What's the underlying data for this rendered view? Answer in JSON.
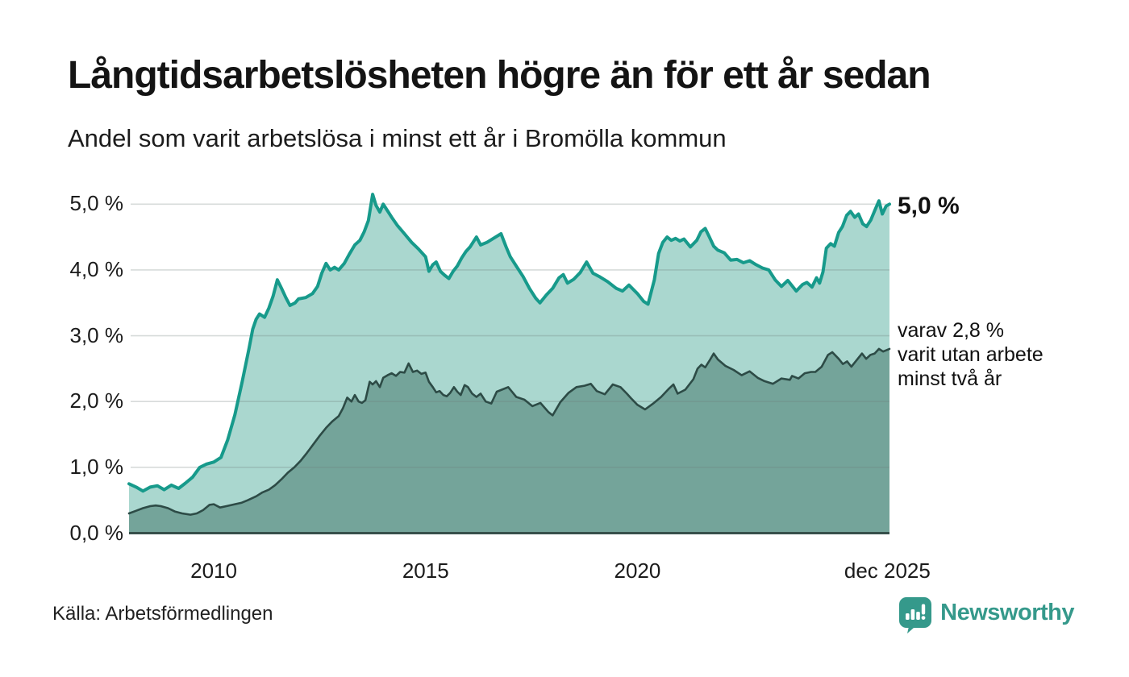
{
  "header": {
    "title": "Långtidsarbetslösheten högre än för ett år sedan",
    "subtitle": "Andel som varit arbetslösa i minst ett år i Bromölla kommun"
  },
  "chart_data": {
    "type": "area",
    "title": "Långtidsarbetslösheten högre än för ett år sedan",
    "subtitle": "Andel som varit arbetslösa i minst ett år i Bromölla kommun",
    "unit": "%",
    "x_axis": {
      "domain": [
        2008.0,
        2025.95
      ],
      "ticks": [
        {
          "label": "2010",
          "x": 2010
        },
        {
          "label": "2015",
          "x": 2015
        },
        {
          "label": "2020",
          "x": 2020
        },
        {
          "label": "dec 2025",
          "x": 2025.9
        }
      ]
    },
    "y_axis": {
      "domain": [
        0,
        5
      ],
      "ticks": [
        {
          "label": "0,0 %",
          "v": 0
        },
        {
          "label": "1,0 %",
          "v": 1
        },
        {
          "label": "2,0 %",
          "v": 2
        },
        {
          "label": "3,0 %",
          "v": 3
        },
        {
          "label": "4,0 %",
          "v": 4
        },
        {
          "label": "5,0 %",
          "v": 5
        }
      ],
      "grid": true
    },
    "colors": {
      "line_1yr": "#179a8b",
      "fill_1yr": "#aad7cf",
      "line_2yr": "#2d4b46",
      "fill_2yr": "#74a49a",
      "baseline": "#37504b",
      "gridline_rgba": "110,125,122,0.28"
    },
    "series": [
      {
        "name": "Andel arbetslösa minst ett år",
        "end_value_label": "5,0 %",
        "points": [
          [
            2008.0,
            0.75
          ],
          [
            2008.17,
            0.7
          ],
          [
            2008.33,
            0.64
          ],
          [
            2008.5,
            0.7
          ],
          [
            2008.67,
            0.72
          ],
          [
            2008.83,
            0.66
          ],
          [
            2009.0,
            0.73
          ],
          [
            2009.17,
            0.68
          ],
          [
            2009.33,
            0.76
          ],
          [
            2009.5,
            0.85
          ],
          [
            2009.67,
            1.0
          ],
          [
            2009.83,
            1.05
          ],
          [
            2010.0,
            1.08
          ],
          [
            2010.17,
            1.15
          ],
          [
            2010.33,
            1.42
          ],
          [
            2010.5,
            1.8
          ],
          [
            2010.67,
            2.3
          ],
          [
            2010.83,
            2.8
          ],
          [
            2010.92,
            3.1
          ],
          [
            2011.0,
            3.25
          ],
          [
            2011.08,
            3.33
          ],
          [
            2011.2,
            3.28
          ],
          [
            2011.3,
            3.42
          ],
          [
            2011.4,
            3.6
          ],
          [
            2011.5,
            3.85
          ],
          [
            2011.6,
            3.72
          ],
          [
            2011.7,
            3.58
          ],
          [
            2011.8,
            3.46
          ],
          [
            2011.92,
            3.5
          ],
          [
            2012.0,
            3.56
          ],
          [
            2012.17,
            3.58
          ],
          [
            2012.33,
            3.64
          ],
          [
            2012.45,
            3.75
          ],
          [
            2012.55,
            3.95
          ],
          [
            2012.65,
            4.1
          ],
          [
            2012.75,
            4.0
          ],
          [
            2012.85,
            4.04
          ],
          [
            2012.95,
            4.0
          ],
          [
            2013.08,
            4.1
          ],
          [
            2013.2,
            4.24
          ],
          [
            2013.33,
            4.38
          ],
          [
            2013.45,
            4.45
          ],
          [
            2013.55,
            4.58
          ],
          [
            2013.65,
            4.75
          ],
          [
            2013.75,
            5.15
          ],
          [
            2013.83,
            4.98
          ],
          [
            2013.92,
            4.88
          ],
          [
            2014.0,
            5.0
          ],
          [
            2014.1,
            4.9
          ],
          [
            2014.2,
            4.8
          ],
          [
            2014.33,
            4.68
          ],
          [
            2014.5,
            4.55
          ],
          [
            2014.67,
            4.42
          ],
          [
            2014.83,
            4.32
          ],
          [
            2015.0,
            4.2
          ],
          [
            2015.08,
            3.98
          ],
          [
            2015.17,
            4.08
          ],
          [
            2015.25,
            4.12
          ],
          [
            2015.35,
            3.98
          ],
          [
            2015.45,
            3.92
          ],
          [
            2015.55,
            3.87
          ],
          [
            2015.65,
            3.98
          ],
          [
            2015.75,
            4.06
          ],
          [
            2015.85,
            4.18
          ],
          [
            2015.95,
            4.28
          ],
          [
            2016.05,
            4.35
          ],
          [
            2016.2,
            4.5
          ],
          [
            2016.3,
            4.38
          ],
          [
            2016.45,
            4.42
          ],
          [
            2016.6,
            4.48
          ],
          [
            2016.78,
            4.55
          ],
          [
            2016.9,
            4.35
          ],
          [
            2017.0,
            4.2
          ],
          [
            2017.15,
            4.05
          ],
          [
            2017.3,
            3.9
          ],
          [
            2017.45,
            3.72
          ],
          [
            2017.6,
            3.57
          ],
          [
            2017.7,
            3.5
          ],
          [
            2017.85,
            3.62
          ],
          [
            2018.0,
            3.72
          ],
          [
            2018.15,
            3.88
          ],
          [
            2018.25,
            3.93
          ],
          [
            2018.35,
            3.8
          ],
          [
            2018.5,
            3.86
          ],
          [
            2018.65,
            3.96
          ],
          [
            2018.8,
            4.12
          ],
          [
            2018.95,
            3.95
          ],
          [
            2019.1,
            3.9
          ],
          [
            2019.3,
            3.82
          ],
          [
            2019.5,
            3.72
          ],
          [
            2019.65,
            3.68
          ],
          [
            2019.8,
            3.77
          ],
          [
            2020.0,
            3.64
          ],
          [
            2020.15,
            3.52
          ],
          [
            2020.25,
            3.48
          ],
          [
            2020.4,
            3.85
          ],
          [
            2020.5,
            4.25
          ],
          [
            2020.6,
            4.42
          ],
          [
            2020.7,
            4.5
          ],
          [
            2020.8,
            4.45
          ],
          [
            2020.9,
            4.48
          ],
          [
            2021.0,
            4.44
          ],
          [
            2021.1,
            4.47
          ],
          [
            2021.25,
            4.35
          ],
          [
            2021.4,
            4.45
          ],
          [
            2021.5,
            4.58
          ],
          [
            2021.6,
            4.63
          ],
          [
            2021.7,
            4.5
          ],
          [
            2021.8,
            4.36
          ],
          [
            2021.9,
            4.3
          ],
          [
            2022.05,
            4.26
          ],
          [
            2022.2,
            4.15
          ],
          [
            2022.35,
            4.16
          ],
          [
            2022.5,
            4.11
          ],
          [
            2022.65,
            4.14
          ],
          [
            2022.8,
            4.08
          ],
          [
            2022.95,
            4.03
          ],
          [
            2023.1,
            4.0
          ],
          [
            2023.25,
            3.85
          ],
          [
            2023.4,
            3.75
          ],
          [
            2023.55,
            3.84
          ],
          [
            2023.75,
            3.68
          ],
          [
            2023.9,
            3.78
          ],
          [
            2024.0,
            3.81
          ],
          [
            2024.12,
            3.74
          ],
          [
            2024.23,
            3.88
          ],
          [
            2024.3,
            3.8
          ],
          [
            2024.38,
            3.97
          ],
          [
            2024.46,
            4.33
          ],
          [
            2024.56,
            4.4
          ],
          [
            2024.65,
            4.36
          ],
          [
            2024.75,
            4.57
          ],
          [
            2024.84,
            4.66
          ],
          [
            2024.94,
            4.83
          ],
          [
            2025.03,
            4.89
          ],
          [
            2025.13,
            4.8
          ],
          [
            2025.22,
            4.85
          ],
          [
            2025.32,
            4.7
          ],
          [
            2025.41,
            4.66
          ],
          [
            2025.51,
            4.76
          ],
          [
            2025.6,
            4.9
          ],
          [
            2025.7,
            5.05
          ],
          [
            2025.78,
            4.85
          ],
          [
            2025.87,
            4.97
          ],
          [
            2025.95,
            5.0
          ]
        ]
      },
      {
        "name": "varav utan arbete minst två år",
        "end_value_label": "2,8 %",
        "points": [
          [
            2008.0,
            0.3
          ],
          [
            2008.17,
            0.34
          ],
          [
            2008.33,
            0.38
          ],
          [
            2008.5,
            0.41
          ],
          [
            2008.63,
            0.42
          ],
          [
            2008.75,
            0.41
          ],
          [
            2008.92,
            0.38
          ],
          [
            2009.08,
            0.33
          ],
          [
            2009.25,
            0.3
          ],
          [
            2009.45,
            0.28
          ],
          [
            2009.6,
            0.3
          ],
          [
            2009.75,
            0.35
          ],
          [
            2009.9,
            0.43
          ],
          [
            2010.0,
            0.44
          ],
          [
            2010.15,
            0.39
          ],
          [
            2010.3,
            0.41
          ],
          [
            2010.5,
            0.44
          ],
          [
            2010.65,
            0.46
          ],
          [
            2010.8,
            0.5
          ],
          [
            2011.0,
            0.56
          ],
          [
            2011.15,
            0.62
          ],
          [
            2011.3,
            0.66
          ],
          [
            2011.45,
            0.73
          ],
          [
            2011.6,
            0.82
          ],
          [
            2011.75,
            0.92
          ],
          [
            2011.9,
            1.0
          ],
          [
            2012.05,
            1.1
          ],
          [
            2012.2,
            1.22
          ],
          [
            2012.35,
            1.35
          ],
          [
            2012.5,
            1.48
          ],
          [
            2012.65,
            1.6
          ],
          [
            2012.8,
            1.7
          ],
          [
            2012.95,
            1.78
          ],
          [
            2013.05,
            1.9
          ],
          [
            2013.15,
            2.06
          ],
          [
            2013.25,
            2.0
          ],
          [
            2013.33,
            2.1
          ],
          [
            2013.42,
            2.0
          ],
          [
            2013.5,
            1.98
          ],
          [
            2013.58,
            2.02
          ],
          [
            2013.68,
            2.3
          ],
          [
            2013.75,
            2.26
          ],
          [
            2013.83,
            2.31
          ],
          [
            2013.92,
            2.22
          ],
          [
            2014.0,
            2.36
          ],
          [
            2014.1,
            2.4
          ],
          [
            2014.2,
            2.43
          ],
          [
            2014.3,
            2.39
          ],
          [
            2014.4,
            2.45
          ],
          [
            2014.5,
            2.44
          ],
          [
            2014.6,
            2.58
          ],
          [
            2014.7,
            2.45
          ],
          [
            2014.8,
            2.47
          ],
          [
            2014.9,
            2.42
          ],
          [
            2015.0,
            2.44
          ],
          [
            2015.08,
            2.3
          ],
          [
            2015.17,
            2.22
          ],
          [
            2015.25,
            2.14
          ],
          [
            2015.33,
            2.16
          ],
          [
            2015.42,
            2.1
          ],
          [
            2015.5,
            2.08
          ],
          [
            2015.58,
            2.13
          ],
          [
            2015.67,
            2.22
          ],
          [
            2015.75,
            2.15
          ],
          [
            2015.83,
            2.1
          ],
          [
            2015.92,
            2.25
          ],
          [
            2016.0,
            2.22
          ],
          [
            2016.1,
            2.12
          ],
          [
            2016.2,
            2.07
          ],
          [
            2016.3,
            2.12
          ],
          [
            2016.42,
            2.0
          ],
          [
            2016.55,
            1.97
          ],
          [
            2016.68,
            2.15
          ],
          [
            2016.8,
            2.18
          ],
          [
            2016.95,
            2.22
          ],
          [
            2017.14,
            2.07
          ],
          [
            2017.33,
            2.03
          ],
          [
            2017.52,
            1.93
          ],
          [
            2017.71,
            1.98
          ],
          [
            2017.9,
            1.84
          ],
          [
            2018.0,
            1.79
          ],
          [
            2018.18,
            1.99
          ],
          [
            2018.37,
            2.13
          ],
          [
            2018.56,
            2.22
          ],
          [
            2018.75,
            2.24
          ],
          [
            2018.9,
            2.27
          ],
          [
            2019.04,
            2.16
          ],
          [
            2019.23,
            2.11
          ],
          [
            2019.42,
            2.26
          ],
          [
            2019.6,
            2.22
          ],
          [
            2019.75,
            2.12
          ],
          [
            2019.85,
            2.05
          ],
          [
            2020.0,
            1.95
          ],
          [
            2020.18,
            1.88
          ],
          [
            2020.37,
            1.97
          ],
          [
            2020.56,
            2.07
          ],
          [
            2020.75,
            2.2
          ],
          [
            2020.85,
            2.26
          ],
          [
            2020.95,
            2.12
          ],
          [
            2021.13,
            2.18
          ],
          [
            2021.32,
            2.34
          ],
          [
            2021.42,
            2.5
          ],
          [
            2021.51,
            2.56
          ],
          [
            2021.6,
            2.52
          ],
          [
            2021.7,
            2.62
          ],
          [
            2021.8,
            2.73
          ],
          [
            2021.9,
            2.64
          ],
          [
            2022.08,
            2.54
          ],
          [
            2022.27,
            2.48
          ],
          [
            2022.46,
            2.4
          ],
          [
            2022.65,
            2.46
          ],
          [
            2022.84,
            2.36
          ],
          [
            2023.0,
            2.31
          ],
          [
            2023.2,
            2.27
          ],
          [
            2023.4,
            2.35
          ],
          [
            2023.6,
            2.33
          ],
          [
            2023.65,
            2.39
          ],
          [
            2023.8,
            2.35
          ],
          [
            2023.95,
            2.43
          ],
          [
            2024.1,
            2.45
          ],
          [
            2024.2,
            2.45
          ],
          [
            2024.35,
            2.53
          ],
          [
            2024.5,
            2.71
          ],
          [
            2024.6,
            2.75
          ],
          [
            2024.75,
            2.65
          ],
          [
            2024.85,
            2.57
          ],
          [
            2024.95,
            2.61
          ],
          [
            2025.05,
            2.53
          ],
          [
            2025.15,
            2.61
          ],
          [
            2025.3,
            2.73
          ],
          [
            2025.4,
            2.65
          ],
          [
            2025.5,
            2.71
          ],
          [
            2025.6,
            2.73
          ],
          [
            2025.7,
            2.8
          ],
          [
            2025.8,
            2.76
          ],
          [
            2025.95,
            2.8
          ]
        ]
      }
    ],
    "annotations": {
      "end_value": "5,0 %",
      "secondary": "varav 2,8 %\nvarit utan arbete\nminst två år"
    },
    "legend_position": "right-annotations",
    "grid": "horizontal-only"
  },
  "footer": {
    "source": "Källa: Arbetsförmedlingen",
    "brand": "Newsworthy"
  }
}
